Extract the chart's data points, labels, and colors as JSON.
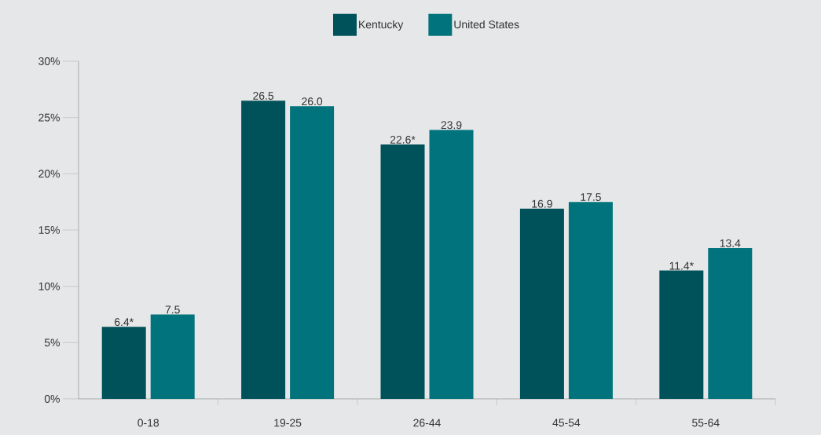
{
  "chart_data": {
    "type": "bar",
    "categories": [
      "0-18",
      "19-25",
      "26-44",
      "45-54",
      "55-64"
    ],
    "series": [
      {
        "name": "Kentucky",
        "color": "#00525a",
        "values": [
          6.4,
          26.5,
          22.6,
          16.9,
          11.4
        ],
        "value_labels": [
          "6.4*",
          "26.5",
          "22.6*",
          "16.9",
          "11.4*"
        ]
      },
      {
        "name": "United States",
        "color": "#00737c",
        "values": [
          7.5,
          26.0,
          23.9,
          17.5,
          13.4
        ],
        "value_labels": [
          "7.5",
          "26.0",
          "23.9",
          "17.5",
          "13.4"
        ]
      }
    ],
    "ylim": [
      0,
      30
    ],
    "yticks": [
      {
        "value": 0,
        "label": "0%"
      },
      {
        "value": 5,
        "label": "5%"
      },
      {
        "value": 10,
        "label": "10%"
      },
      {
        "value": 15,
        "label": "15%"
      },
      {
        "value": 20,
        "label": "20%"
      },
      {
        "value": 25,
        "label": "25%"
      },
      {
        "value": 30,
        "label": "30%"
      }
    ],
    "legend": "top",
    "grid": false
  }
}
